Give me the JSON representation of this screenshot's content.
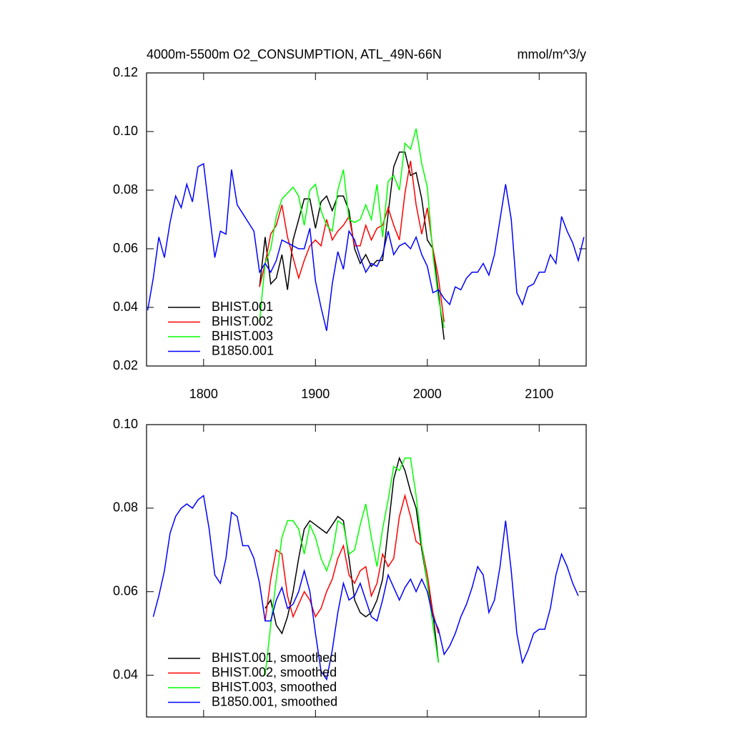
{
  "chart_data": [
    {
      "type": "line",
      "title": "4000m-5500m O2_CONSUMPTION, ATL_49N-66N",
      "units": "mmol/m^3/y",
      "xlim": [
        1749,
        2142
      ],
      "xticks": [
        1800,
        1900,
        2000,
        2100
      ],
      "xtick_labels": true,
      "ylim": [
        0.02,
        0.12
      ],
      "yticks": [
        0.02,
        0.04,
        0.06,
        0.08,
        {
          "value": 0.1,
          "label": "0.10"
        },
        0.12
      ],
      "series": [
        {
          "name": "BHIST.001",
          "color": "#000000",
          "x": [
            1850,
            1855,
            1860,
            1865,
            1870,
            1875,
            1880,
            1885,
            1890,
            1895,
            1900,
            1905,
            1910,
            1915,
            1920,
            1925,
            1930,
            1935,
            1940,
            1945,
            1950,
            1955,
            1960,
            1965,
            1970,
            1975,
            1980,
            1985,
            1990,
            1995,
            2000,
            2005,
            2010,
            2015
          ],
          "values": [
            0.047,
            0.064,
            0.048,
            0.05,
            0.058,
            0.046,
            0.063,
            0.07,
            0.077,
            0.077,
            0.067,
            0.076,
            0.078,
            0.073,
            0.078,
            0.078,
            0.073,
            0.06,
            0.055,
            0.058,
            0.054,
            0.056,
            0.056,
            0.072,
            0.088,
            0.093,
            0.093,
            0.085,
            0.086,
            0.077,
            0.063,
            0.06,
            0.045,
            0.029
          ]
        },
        {
          "name": "BHIST.002",
          "color": "#ff0000",
          "x": [
            1850,
            1855,
            1860,
            1865,
            1870,
            1875,
            1880,
            1885,
            1890,
            1895,
            1900,
            1905,
            1910,
            1915,
            1920,
            1925,
            1930,
            1935,
            1940,
            1945,
            1950,
            1955,
            1960,
            1965,
            1970,
            1975,
            1980,
            1985,
            1990,
            1995,
            2000,
            2005,
            2010,
            2015
          ],
          "values": [
            0.047,
            0.055,
            0.065,
            0.068,
            0.075,
            0.064,
            0.057,
            0.05,
            0.056,
            0.061,
            0.063,
            0.061,
            0.07,
            0.063,
            0.066,
            0.068,
            0.071,
            0.061,
            0.061,
            0.068,
            0.063,
            0.067,
            0.068,
            0.074,
            0.068,
            0.063,
            0.079,
            0.09,
            0.075,
            0.065,
            0.074,
            0.06,
            0.05,
            0.035
          ]
        },
        {
          "name": "BHIST.003",
          "color": "#00ff00",
          "x": [
            1850,
            1855,
            1860,
            1865,
            1870,
            1875,
            1880,
            1885,
            1890,
            1895,
            1900,
            1905,
            1910,
            1915,
            1920,
            1925,
            1930,
            1935,
            1940,
            1945,
            1950,
            1955,
            1960,
            1965,
            1970,
            1975,
            1980,
            1985,
            1990,
            1995,
            2000,
            2005,
            2010,
            2015
          ],
          "values": [
            0.035,
            0.055,
            0.06,
            0.071,
            0.077,
            0.079,
            0.081,
            0.078,
            0.068,
            0.08,
            0.082,
            0.073,
            0.068,
            0.066,
            0.08,
            0.087,
            0.07,
            0.069,
            0.07,
            0.075,
            0.07,
            0.082,
            0.064,
            0.083,
            0.085,
            0.08,
            0.096,
            0.094,
            0.101,
            0.089,
            0.081,
            0.058,
            0.043,
            0.033
          ]
        },
        {
          "name": "B1850.001",
          "color": "#0000ff",
          "x": [
            1750,
            1755,
            1760,
            1765,
            1770,
            1775,
            1780,
            1785,
            1790,
            1795,
            1800,
            1805,
            1810,
            1815,
            1820,
            1825,
            1830,
            1835,
            1840,
            1845,
            1850,
            1855,
            1860,
            1865,
            1870,
            1875,
            1880,
            1885,
            1890,
            1895,
            1900,
            1905,
            1910,
            1915,
            1920,
            1925,
            1930,
            1935,
            1940,
            1945,
            1950,
            1955,
            1960,
            1965,
            1970,
            1975,
            1980,
            1985,
            1990,
            1995,
            2000,
            2005,
            2010,
            2015,
            2020,
            2025,
            2030,
            2035,
            2040,
            2045,
            2050,
            2055,
            2060,
            2065,
            2070,
            2075,
            2080,
            2085,
            2090,
            2095,
            2100,
            2105,
            2110,
            2115,
            2120,
            2125,
            2130,
            2135,
            2140
          ],
          "values": [
            0.039,
            0.05,
            0.064,
            0.057,
            0.069,
            0.078,
            0.074,
            0.082,
            0.076,
            0.088,
            0.089,
            0.073,
            0.057,
            0.066,
            0.065,
            0.087,
            0.075,
            0.072,
            0.069,
            0.066,
            0.052,
            0.055,
            0.052,
            0.056,
            0.063,
            0.062,
            0.061,
            0.06,
            0.06,
            0.067,
            0.049,
            0.04,
            0.032,
            0.048,
            0.059,
            0.053,
            0.066,
            0.063,
            0.057,
            0.052,
            0.055,
            0.054,
            0.058,
            0.066,
            0.058,
            0.061,
            0.062,
            0.06,
            0.064,
            0.058,
            0.054,
            0.045,
            0.046,
            0.043,
            0.041,
            0.047,
            0.046,
            0.05,
            0.052,
            0.052,
            0.055,
            0.051,
            0.058,
            0.07,
            0.082,
            0.07,
            0.045,
            0.041,
            0.047,
            0.048,
            0.052,
            0.052,
            0.058,
            0.055,
            0.071,
            0.066,
            0.062,
            0.056,
            0.064
          ]
        }
      ]
    },
    {
      "type": "line",
      "xlim": [
        1749,
        2142
      ],
      "xticks": [
        1800,
        1900,
        2000,
        2100
      ],
      "xtick_labels": false,
      "ylim": [
        0.03,
        0.1
      ],
      "yticks": [
        0.04,
        0.06,
        0.08,
        {
          "value": 0.1,
          "label": "0.10"
        }
      ],
      "series": [
        {
          "name": "BHIST.001, smoothed",
          "color": "#000000",
          "x": [
            1855,
            1860,
            1865,
            1870,
            1875,
            1880,
            1885,
            1890,
            1895,
            1900,
            1905,
            1910,
            1915,
            1920,
            1925,
            1930,
            1935,
            1940,
            1945,
            1950,
            1955,
            1960,
            1965,
            1970,
            1975,
            1980,
            1985,
            1990,
            1995,
            2000,
            2005,
            2010
          ],
          "values": [
            0.056,
            0.058,
            0.052,
            0.05,
            0.054,
            0.06,
            0.068,
            0.075,
            0.077,
            0.076,
            0.075,
            0.074,
            0.076,
            0.078,
            0.077,
            0.068,
            0.058,
            0.055,
            0.054,
            0.055,
            0.058,
            0.063,
            0.075,
            0.087,
            0.092,
            0.089,
            0.084,
            0.08,
            0.07,
            0.062,
            0.055,
            0.043
          ]
        },
        {
          "name": "BHIST.002, smoothed",
          "color": "#ff0000",
          "x": [
            1855,
            1860,
            1865,
            1870,
            1875,
            1880,
            1885,
            1890,
            1895,
            1900,
            1905,
            1910,
            1915,
            1920,
            1925,
            1930,
            1935,
            1940,
            1945,
            1950,
            1955,
            1960,
            1965,
            1970,
            1975,
            1980,
            1985,
            1990,
            1995,
            2000,
            2005,
            2010
          ],
          "values": [
            0.053,
            0.063,
            0.07,
            0.069,
            0.059,
            0.054,
            0.057,
            0.06,
            0.058,
            0.054,
            0.056,
            0.06,
            0.063,
            0.068,
            0.071,
            0.064,
            0.062,
            0.065,
            0.066,
            0.059,
            0.062,
            0.069,
            0.066,
            0.068,
            0.078,
            0.083,
            0.078,
            0.072,
            0.071,
            0.064,
            0.055,
            0.05
          ]
        },
        {
          "name": "BHIST.003, smoothed",
          "color": "#00ff00",
          "x": [
            1855,
            1860,
            1865,
            1870,
            1875,
            1880,
            1885,
            1890,
            1895,
            1900,
            1905,
            1910,
            1915,
            1920,
            1925,
            1930,
            1935,
            1940,
            1945,
            1950,
            1955,
            1960,
            1965,
            1970,
            1975,
            1980,
            1985,
            1990,
            1995,
            2000,
            2005,
            2010
          ],
          "values": [
            0.04,
            0.052,
            0.063,
            0.073,
            0.077,
            0.077,
            0.075,
            0.069,
            0.076,
            0.073,
            0.068,
            0.065,
            0.069,
            0.077,
            0.076,
            0.069,
            0.07,
            0.076,
            0.081,
            0.073,
            0.066,
            0.075,
            0.082,
            0.09,
            0.089,
            0.092,
            0.092,
            0.083,
            0.071,
            0.062,
            0.052,
            0.043
          ]
        },
        {
          "name": "B1850.001, smoothed",
          "color": "#0000ff",
          "x": [
            1755,
            1760,
            1765,
            1770,
            1775,
            1780,
            1785,
            1790,
            1795,
            1800,
            1805,
            1810,
            1815,
            1820,
            1825,
            1830,
            1835,
            1840,
            1845,
            1850,
            1855,
            1860,
            1865,
            1870,
            1875,
            1880,
            1885,
            1890,
            1895,
            1900,
            1905,
            1910,
            1915,
            1920,
            1925,
            1930,
            1935,
            1940,
            1945,
            1950,
            1955,
            1960,
            1965,
            1970,
            1975,
            1980,
            1985,
            1990,
            1995,
            2000,
            2005,
            2010,
            2015,
            2020,
            2025,
            2030,
            2035,
            2040,
            2045,
            2050,
            2055,
            2060,
            2065,
            2070,
            2075,
            2080,
            2085,
            2090,
            2095,
            2100,
            2105,
            2110,
            2115,
            2120,
            2125,
            2130,
            2135
          ],
          "values": [
            0.054,
            0.059,
            0.065,
            0.074,
            0.078,
            0.08,
            0.081,
            0.08,
            0.082,
            0.083,
            0.075,
            0.064,
            0.062,
            0.068,
            0.079,
            0.078,
            0.071,
            0.071,
            0.068,
            0.062,
            0.053,
            0.053,
            0.058,
            0.061,
            0.056,
            0.057,
            0.06,
            0.065,
            0.06,
            0.05,
            0.041,
            0.039,
            0.046,
            0.055,
            0.062,
            0.058,
            0.059,
            0.062,
            0.058,
            0.054,
            0.053,
            0.058,
            0.064,
            0.061,
            0.058,
            0.061,
            0.063,
            0.06,
            0.063,
            0.06,
            0.054,
            0.051,
            0.045,
            0.047,
            0.05,
            0.054,
            0.057,
            0.061,
            0.066,
            0.064,
            0.055,
            0.058,
            0.066,
            0.077,
            0.065,
            0.05,
            0.043,
            0.046,
            0.05,
            0.051,
            0.051,
            0.056,
            0.064,
            0.069,
            0.066,
            0.062,
            0.059
          ]
        }
      ]
    }
  ]
}
